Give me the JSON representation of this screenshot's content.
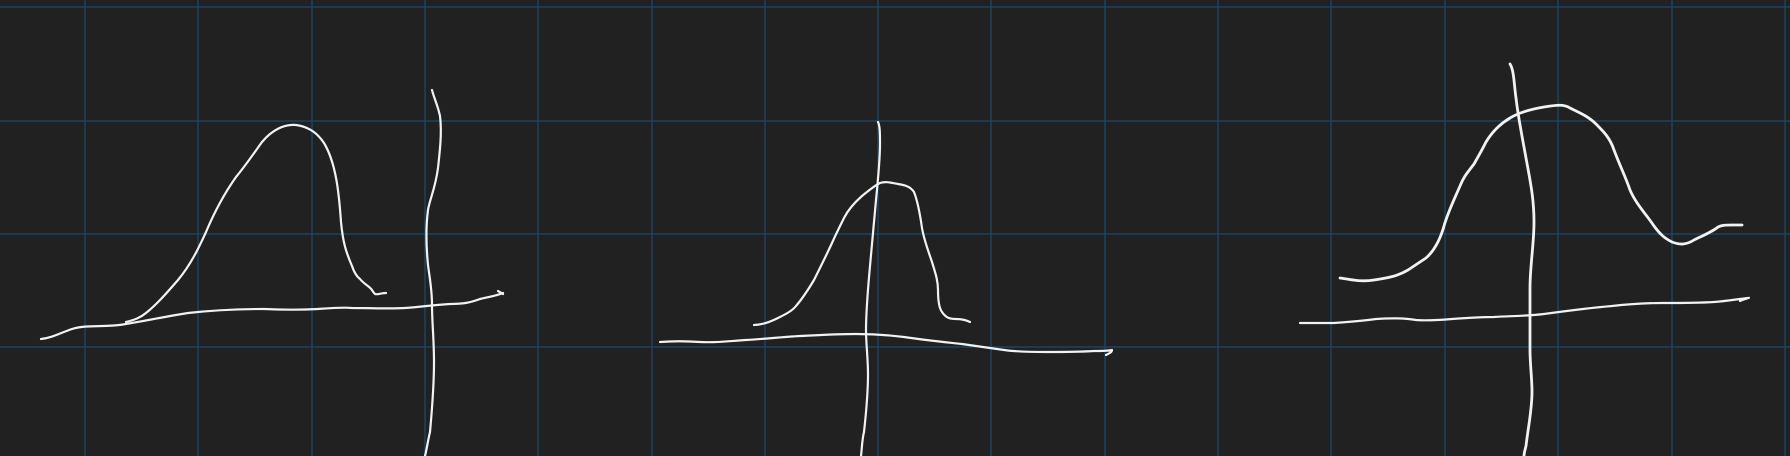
{
  "canvas": {
    "background_color": "#212121",
    "grid_color": "#1c4a6e",
    "ink_color": "#f2f2f2",
    "grid_visible": true
  },
  "sketches": [
    {
      "name": "left-distribution-sketch",
      "description_shown": ""
    },
    {
      "name": "middle-distribution-sketch",
      "description_shown": ""
    },
    {
      "name": "right-distribution-sketch",
      "description_shown": ""
    }
  ]
}
